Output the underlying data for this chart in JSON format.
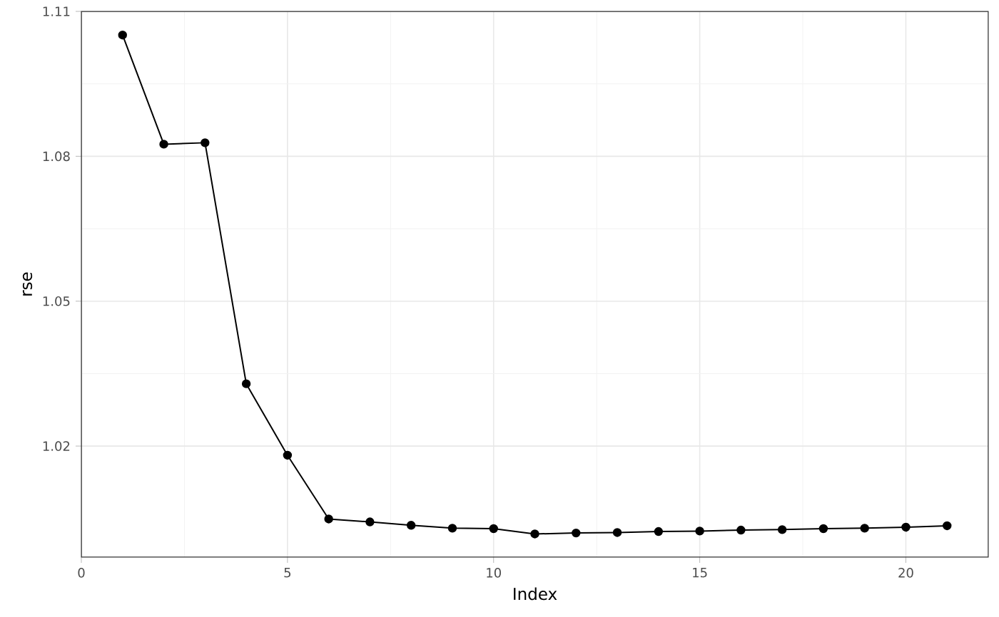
{
  "chart_data": {
    "type": "line",
    "xlabel": "Index",
    "ylabel": "rse",
    "x": [
      1,
      2,
      3,
      4,
      5,
      6,
      7,
      8,
      9,
      10,
      11,
      12,
      13,
      14,
      15,
      16,
      17,
      18,
      19,
      20,
      21
    ],
    "series": [
      {
        "color": "#000000",
        "values": [
          1.1051,
          1.0825,
          1.0828,
          1.0329,
          1.0181,
          1.0049,
          1.0043,
          1.0036,
          1.003,
          1.0029,
          1.0018,
          1.002,
          1.0021,
          1.0023,
          1.0024,
          1.0026,
          1.0027,
          1.0029,
          1.003,
          1.0032,
          1.0035
        ]
      }
    ],
    "xlim": [
      0,
      22
    ],
    "ylim": [
      0.997,
      1.11
    ],
    "xticks": [
      0,
      5,
      10,
      15,
      20
    ],
    "yticks": [
      1.02,
      1.05,
      1.08,
      1.11
    ],
    "grid": true,
    "marker": "circle",
    "line_style": "solid"
  }
}
